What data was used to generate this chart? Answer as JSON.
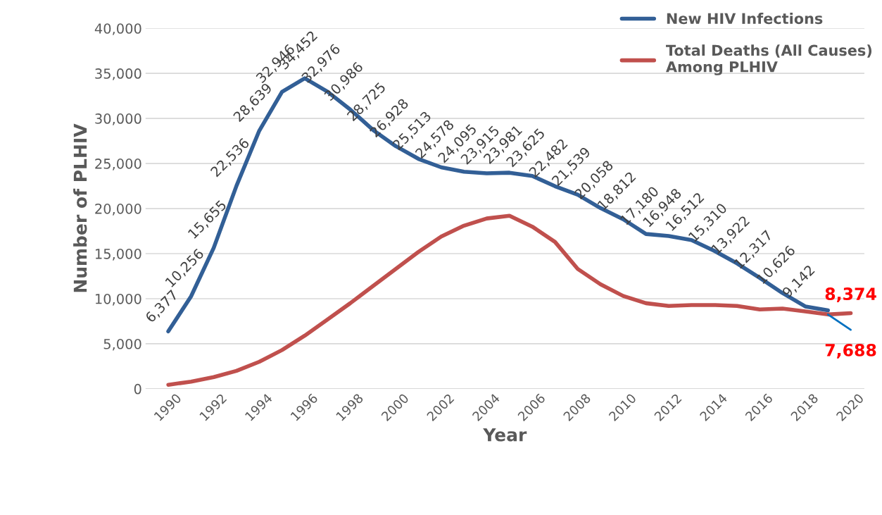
{
  "chart_data": {
    "type": "line",
    "xlabel": "Year",
    "ylabel": "Number of PLHIV",
    "x": [
      1990,
      1991,
      1992,
      1993,
      1994,
      1995,
      1996,
      1997,
      1998,
      1999,
      2000,
      2001,
      2002,
      2003,
      2004,
      2005,
      2006,
      2007,
      2008,
      2009,
      2010,
      2011,
      2012,
      2013,
      2014,
      2015,
      2016,
      2017,
      2018,
      2019,
      2020
    ],
    "series": [
      {
        "name": "New HIV Infections",
        "color": "#325f96",
        "values": [
          6377,
          10256,
          15655,
          22536,
          28639,
          32946,
          34452,
          32976,
          30986,
          28725,
          26928,
          25513,
          24578,
          24095,
          23915,
          23981,
          23625,
          22482,
          21539,
          20058,
          18812,
          17180,
          16948,
          16512,
          15310,
          13922,
          12317,
          10626,
          9142,
          8700,
          null
        ],
        "value_labels": [
          "6,377",
          "10,256",
          "15,655",
          "22,536",
          "28,639",
          "32,946",
          "34,452",
          "32,976",
          "30,986",
          "28,725",
          "26,928",
          "25,513",
          "24,578",
          "24,095",
          "23,915",
          "23,981",
          "23,625",
          "22,482",
          "21,539",
          "20,058",
          "18,812",
          "17,180",
          "16,948",
          "16,512",
          "15,310",
          "13,922",
          "12,317",
          "10,626",
          "9,142",
          null,
          null
        ]
      },
      {
        "name": "Total Deaths (All Causes)\nAmong PLHIV",
        "color": "#c0504d",
        "values": [
          450,
          800,
          1300,
          2000,
          3000,
          4300,
          5900,
          7700,
          9500,
          11400,
          13300,
          15200,
          16900,
          18100,
          18900,
          19200,
          18000,
          16300,
          13300,
          11600,
          10300,
          9500,
          9200,
          9300,
          9300,
          9200,
          8800,
          8900,
          8600,
          8250,
          8400
        ]
      },
      {
        "color": "#0070c0",
        "values": [
          null,
          null,
          null,
          null,
          null,
          null,
          null,
          null,
          null,
          null,
          null,
          null,
          null,
          null,
          null,
          null,
          null,
          null,
          null,
          null,
          null,
          null,
          null,
          null,
          null,
          null,
          null,
          null,
          null,
          8250,
          6550
        ]
      }
    ],
    "annotations": [
      {
        "text": "8,374",
        "x": 2020,
        "y": 8400
      },
      {
        "text": "7,688",
        "x": 2020,
        "y": 6550
      }
    ],
    "xlim": [
      1989,
      2020.6
    ],
    "xticks": [
      1990,
      1992,
      1994,
      1996,
      1998,
      2000,
      2002,
      2004,
      2006,
      2008,
      2010,
      2012,
      2014,
      2016,
      2018,
      2020
    ],
    "ylim": [
      0,
      40000
    ],
    "yticks": [
      {
        "value": 0,
        "label": "0"
      },
      {
        "value": 5000,
        "label": "5,000"
      },
      {
        "value": 10000,
        "label": "10,000"
      },
      {
        "value": 15000,
        "label": "15,000"
      },
      {
        "value": 20000,
        "label": "20,000"
      },
      {
        "value": 25000,
        "label": "25,000"
      },
      {
        "value": 30000,
        "label": "30,000"
      },
      {
        "value": 35000,
        "label": "35,000"
      },
      {
        "value": 40000,
        "label": "40,000"
      }
    ],
    "grid": "y",
    "legend": "top right",
    "marker": "none",
    "line_style": "solid"
  }
}
